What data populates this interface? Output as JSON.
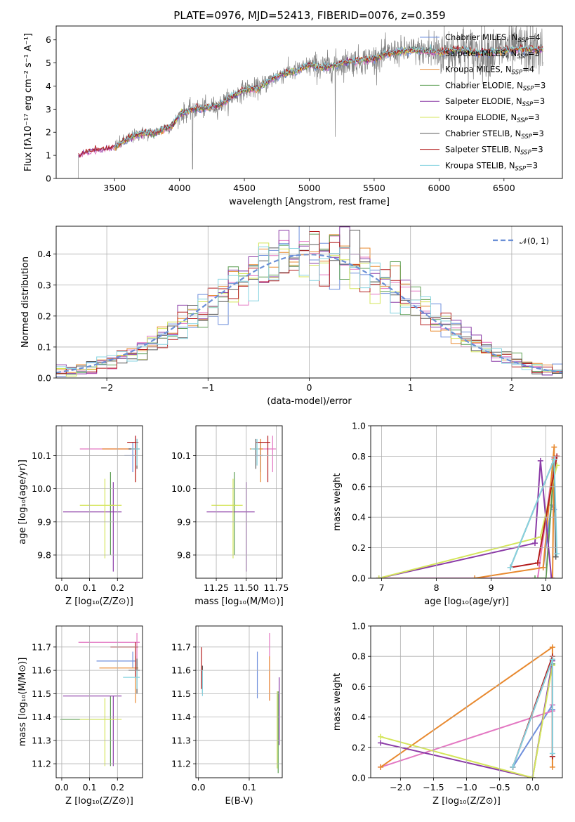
{
  "figure": {
    "title": "PLATE=0976, MJD=52413, FIBERID=0076, z=0.359"
  },
  "model_colors": {
    "Chabrier MILES": "#6f8fdc",
    "Salpeter MILES": "#e377c2",
    "Kroupa MILES": "#e8892f",
    "Chabrier ELODIE": "#5c9e52",
    "Salpeter ELODIE": "#8a3aa6",
    "Kroupa ELODIE": "#d4e55a",
    "Chabrier STELIB": "#5a5a5a",
    "Salpeter STELIB": "#b31b1b",
    "Kroupa STELIB": "#86d3e0"
  },
  "chart_data": [
    {
      "id": "spectrum",
      "type": "line",
      "title": "PLATE=0976, MJD=52413, FIBERID=0076, z=0.359",
      "xlabel": "wavelength [Angstrom, rest frame]",
      "ylabel": "Flux [fλ10⁻¹⁷ erg cm⁻² s⁻¹ A⁻¹]",
      "xlim": [
        3050,
        6950
      ],
      "ylim": [
        0,
        6.6
      ],
      "xticks": [
        "3500",
        "4000",
        "4500",
        "5000",
        "5500",
        "6000",
        "6500"
      ],
      "yticks": [
        "0",
        "1",
        "2",
        "3",
        "4",
        "5",
        "6"
      ],
      "grid": false,
      "legend_position": "top-right",
      "legend": [
        {
          "label": "Chabrier MILES, N",
          "sub": "SSP",
          "tail": "=4",
          "color": "#6f8fdc"
        },
        {
          "label": "Salpeter MILES, N",
          "sub": "SSP",
          "tail": "=3",
          "color": "#e377c2"
        },
        {
          "label": "Kroupa MILES, N",
          "sub": "SSP",
          "tail": "=4",
          "color": "#e8892f"
        },
        {
          "label": "Chabrier ELODIE, N",
          "sub": "SSP",
          "tail": "=3",
          "color": "#5c9e52"
        },
        {
          "label": "Salpeter ELODIE, N",
          "sub": "SSP",
          "tail": "=3",
          "color": "#8a3aa6"
        },
        {
          "label": "Kroupa ELODIE, N",
          "sub": "SSP",
          "tail": "=3",
          "color": "#d4e55a"
        },
        {
          "label": "Chabrier STELIB, N",
          "sub": "SSP",
          "tail": "=3",
          "color": "#5a5a5a"
        },
        {
          "label": "Salpeter STELIB, N",
          "sub": "SSP",
          "tail": "=3",
          "color": "#b31b1b"
        },
        {
          "label": "Kroupa STELIB, N",
          "sub": "SSP",
          "tail": "=3",
          "color": "#86d3e0"
        }
      ],
      "continuum": {
        "wavelength": [
          3220,
          3300,
          3400,
          3500,
          3600,
          3700,
          3800,
          3900,
          3950,
          4000,
          4100,
          4200,
          4300,
          4400,
          4500,
          4600,
          4700,
          4800,
          4900,
          5000,
          5100,
          5200,
          5300,
          5400,
          5500,
          5600,
          5700,
          5800,
          5900,
          6000,
          6100,
          6200,
          6300,
          6400,
          6500,
          6600,
          6700,
          6800
        ],
        "flux": [
          1.0,
          1.2,
          1.25,
          1.35,
          1.7,
          1.95,
          1.95,
          2.2,
          2.3,
          2.75,
          3.0,
          3.05,
          3.15,
          3.5,
          3.85,
          3.9,
          4.25,
          4.55,
          4.65,
          4.9,
          4.8,
          4.9,
          5.05,
          5.1,
          5.2,
          5.4,
          5.5,
          5.55,
          5.5,
          5.45,
          5.55,
          5.55,
          5.4,
          5.45,
          5.55,
          5.6,
          5.6,
          5.55
        ]
      },
      "data_noise_sigma": [
        0.05,
        0.25,
        0.35,
        0.5,
        0.9
      ],
      "data_noise_breaks": [
        3500,
        4000,
        5000,
        5900
      ],
      "data_color": "#808080"
    },
    {
      "id": "residuals",
      "type": "line",
      "xlabel": "(data-model)/error",
      "ylabel": "Normed distribution",
      "xlim": [
        -2.5,
        2.5
      ],
      "ylim": [
        0,
        0.49
      ],
      "xticks": [
        "−2",
        "−1",
        "0",
        "1",
        "2"
      ],
      "yticks": [
        "0.0",
        "0.1",
        "0.2",
        "0.3",
        "0.4"
      ],
      "grid": true,
      "legend_position": "top-right",
      "legend": [
        {
          "label": "𝒩(0, 1)",
          "color": "#6a8fd6"
        }
      ],
      "gaussian": {
        "mu": 0,
        "sigma": 1
      },
      "histogram_bins": 50,
      "histogram_range": [
        -2.5,
        2.5
      ]
    },
    {
      "id": "age-vs-Z",
      "type": "scatter",
      "xlabel": "Z [log₁₀(Z/Z⊙)]",
      "ylabel": "age  [log₁₀(age/yr)]",
      "xlim": [
        -0.02,
        0.29
      ],
      "ylim": [
        9.73,
        10.19
      ],
      "xticks": [
        "0.0",
        "0.1",
        "0.2"
      ],
      "yticks": [
        "9.8",
        "9.9",
        "10.0",
        "10.1"
      ],
      "grid": true,
      "points": [
        {
          "model": "Chabrier MILES",
          "x": 0.255,
          "xerr": [
            0.03,
            0.01
          ],
          "y": 10.1,
          "yerr": [
            0.05,
            0.04
          ]
        },
        {
          "model": "Salpeter MILES",
          "x": 0.265,
          "xerr": [
            0.2,
            0.01
          ],
          "y": 10.12,
          "yerr": [
            0.07,
            0.04
          ]
        },
        {
          "model": "Kroupa MILES",
          "x": 0.265,
          "xerr": [
            0.12,
            0.01
          ],
          "y": 10.12,
          "yerr": [
            0.1,
            0.03
          ]
        },
        {
          "model": "Chabrier ELODIE",
          "x": 0.175,
          "xerr": [
            0.0,
            0.01
          ],
          "y": 9.95,
          "yerr": [
            0.15,
            0.1
          ]
        },
        {
          "model": "Salpeter ELODIE",
          "x": 0.185,
          "xerr": [
            0.18,
            0.03
          ],
          "y": 9.93,
          "yerr": [
            0.18,
            0.09
          ]
        },
        {
          "model": "Kroupa ELODIE",
          "x": 0.155,
          "xerr": [
            0.09,
            0.06
          ],
          "y": 9.95,
          "yerr": [
            0.16,
            0.08
          ]
        },
        {
          "model": "Chabrier STELIB",
          "x": 0.27,
          "xerr": [
            0.03,
            0.01
          ],
          "y": 10.12,
          "yerr": [
            0.06,
            0.03
          ]
        },
        {
          "model": "Salpeter STELIB",
          "x": 0.265,
          "xerr": [
            0.03,
            0.01
          ],
          "y": 10.14,
          "yerr": [
            0.12,
            0.02
          ]
        },
        {
          "model": "Kroupa STELIB",
          "x": 0.27,
          "xerr": [
            0.02,
            0.01
          ],
          "y": 10.12,
          "yerr": [
            0.05,
            0.03
          ]
        }
      ]
    },
    {
      "id": "age-vs-mass",
      "type": "scatter",
      "xlabel": "mass [log₁₀(M/M⊙)]",
      "ylabel": "",
      "xlim": [
        11.08,
        11.8
      ],
      "ylim": [
        9.73,
        10.19
      ],
      "xticks": [
        "11.25",
        "11.50",
        "11.75"
      ],
      "yticks": [
        "9.8",
        "9.9",
        "10.0",
        "10.1"
      ],
      "grid": true,
      "points": [
        {
          "model": "Chabrier MILES",
          "x": 11.62,
          "xerr": [
            0.05,
            0.02
          ],
          "y": 10.1,
          "yerr": [
            0.05,
            0.04
          ]
        },
        {
          "model": "Salpeter MILES",
          "x": 11.72,
          "xerr": [
            0.12,
            0.03
          ],
          "y": 10.12,
          "yerr": [
            0.07,
            0.04
          ]
        },
        {
          "model": "Kroupa MILES",
          "x": 11.62,
          "xerr": [
            0.09,
            0.02
          ],
          "y": 10.12,
          "yerr": [
            0.1,
            0.03
          ]
        },
        {
          "model": "Chabrier ELODIE",
          "x": 11.4,
          "xerr": [
            0.01,
            0.01
          ],
          "y": 9.95,
          "yerr": [
            0.15,
            0.1
          ]
        },
        {
          "model": "Salpeter ELODIE",
          "x": 11.5,
          "xerr": [
            0.33,
            0.07
          ],
          "y": 9.93,
          "yerr": [
            0.18,
            0.09
          ]
        },
        {
          "model": "Kroupa ELODIE",
          "x": 11.39,
          "xerr": [
            0.18,
            0.08
          ],
          "y": 9.95,
          "yerr": [
            0.16,
            0.08
          ]
        },
        {
          "model": "Chabrier STELIB",
          "x": 11.58,
          "xerr": [
            0.02,
            0.01
          ],
          "y": 10.12,
          "yerr": [
            0.06,
            0.03
          ]
        },
        {
          "model": "Salpeter STELIB",
          "x": 11.68,
          "xerr": [
            0.1,
            0.02
          ],
          "y": 10.14,
          "yerr": [
            0.12,
            0.02
          ]
        },
        {
          "model": "Kroupa STELIB",
          "x": 11.59,
          "xerr": [
            0.05,
            0.02
          ],
          "y": 10.12,
          "yerr": [
            0.05,
            0.03
          ]
        }
      ]
    },
    {
      "id": "weight-vs-age",
      "type": "line",
      "xlabel": "age  [log₁₀(age/yr)]",
      "ylabel": "mass weight",
      "xlim": [
        6.8,
        10.3
      ],
      "ylim": [
        0,
        1.0
      ],
      "xticks": [
        "7",
        "8",
        "9",
        "10"
      ],
      "yticks": [
        "0.0",
        "0.2",
        "0.4",
        "0.6",
        "0.8",
        "1.0"
      ],
      "grid": true,
      "series": [
        {
          "model": "Chabrier MILES",
          "x": [
            9.95,
            10.1,
            10.15
          ],
          "y": [
            0.07,
            0.48,
            0.45
          ]
        },
        {
          "model": "Salpeter MILES",
          "x": [
            6.95,
            9.85,
            10.15
          ],
          "y": [
            0.0,
            0.0,
            0.79
          ]
        },
        {
          "model": "Kroupa MILES",
          "x": [
            8.7,
            9.95,
            10.15,
            10.12
          ],
          "y": [
            0.0,
            0.07,
            0.86,
            0.0
          ]
        },
        {
          "model": "Chabrier ELODIE",
          "x": [
            9.8,
            10.0,
            10.15
          ],
          "y": [
            0.0,
            0.0,
            0.75
          ]
        },
        {
          "model": "Salpeter ELODIE",
          "x": [
            6.95,
            9.8,
            9.9,
            10.1
          ],
          "y": [
            0.0,
            0.23,
            0.77,
            0.0
          ]
        },
        {
          "model": "Kroupa ELODIE",
          "x": [
            6.95,
            9.9,
            10.2
          ],
          "y": [
            0.0,
            0.27,
            0.74
          ]
        },
        {
          "model": "Chabrier STELIB",
          "x": [
            9.35,
            10.15,
            10.18
          ],
          "y": [
            0.07,
            0.78,
            0.14
          ]
        },
        {
          "model": "Salpeter STELIB",
          "x": [
            9.35,
            9.85,
            10.2
          ],
          "y": [
            0.07,
            0.1,
            0.8
          ]
        },
        {
          "model": "Kroupa STELIB",
          "x": [
            9.35,
            10.15,
            10.2
          ],
          "y": [
            0.07,
            0.78,
            0.16
          ]
        }
      ]
    },
    {
      "id": "mass-vs-Z",
      "type": "scatter",
      "xlabel": "Z [log₁₀(Z/Z⊙)]",
      "ylabel": "mass [log₁₀(M/M⊙)]",
      "xlim": [
        -0.02,
        0.29
      ],
      "ylim": [
        11.14,
        11.79
      ],
      "xticks": [
        "0.0",
        "0.1",
        "0.2"
      ],
      "yticks": [
        "11.2",
        "11.3",
        "11.4",
        "11.5",
        "11.6",
        "11.7"
      ],
      "grid": true,
      "points": [
        {
          "model": "Chabrier MILES",
          "x": 0.255,
          "xerr": [
            0.13,
            0.01
          ],
          "y": 11.64,
          "yerr": [
            0.03,
            0.04
          ]
        },
        {
          "model": "Salpeter MILES",
          "x": 0.27,
          "xerr": [
            0.21,
            0.01
          ],
          "y": 11.72,
          "yerr": [
            0.12,
            0.04
          ]
        },
        {
          "model": "Kroupa MILES",
          "x": 0.265,
          "xerr": [
            0.13,
            0.01
          ],
          "y": 11.61,
          "yerr": [
            0.15,
            0.05
          ]
        },
        {
          "model": "Chabrier ELODIE",
          "x": 0.175,
          "xerr": [
            0.18,
            0.0
          ],
          "y": 11.39,
          "yerr": [
            0.2,
            0.1
          ]
        },
        {
          "model": "Salpeter ELODIE",
          "x": 0.185,
          "xerr": [
            0.18,
            0.03
          ],
          "y": 11.49,
          "yerr": [
            0.3,
            0.0
          ]
        },
        {
          "model": "Kroupa ELODIE",
          "x": 0.155,
          "xerr": [
            0.09,
            0.06
          ],
          "y": 11.39,
          "yerr": [
            0.2,
            0.09
          ]
        },
        {
          "model": "Chabrier STELIB",
          "x": 0.27,
          "xerr": [
            0.03,
            0.01
          ],
          "y": 11.6,
          "yerr": [
            0.1,
            0.05
          ]
        },
        {
          "model": "Salpeter STELIB",
          "x": 0.265,
          "xerr": [
            0.09,
            0.01
          ],
          "y": 11.7,
          "yerr": [
            0.13,
            0.02
          ]
        },
        {
          "model": "Kroupa STELIB",
          "x": 0.27,
          "xerr": [
            0.05,
            0.01
          ],
          "y": 11.57,
          "yerr": [
            0.05,
            0.03
          ]
        }
      ]
    },
    {
      "id": "mass-vs-ebv",
      "type": "scatter",
      "xlabel": "E(B-V)",
      "ylabel": "",
      "xlim": [
        -0.005,
        0.165
      ],
      "ylim": [
        11.14,
        11.79
      ],
      "xticks": [
        "0.0",
        "0.1"
      ],
      "yticks": [
        "11.2",
        "11.3",
        "11.4",
        "11.5",
        "11.6",
        "11.7"
      ],
      "grid": true,
      "points": [
        {
          "model": "Chabrier MILES",
          "x": 0.116,
          "y": 11.58,
          "yerr": [
            0.1,
            0.1
          ]
        },
        {
          "model": "Salpeter MILES",
          "x": 0.14,
          "y": 11.6,
          "yerr": [
            0.13,
            0.16
          ]
        },
        {
          "model": "Kroupa MILES",
          "x": 0.14,
          "y": 11.55,
          "yerr": [
            0.08,
            0.11
          ]
        },
        {
          "model": "Chabrier ELODIE",
          "x": 0.157,
          "y": 11.32,
          "yerr": [
            0.16,
            0.19
          ]
        },
        {
          "model": "Salpeter ELODIE",
          "x": 0.159,
          "y": 11.4,
          "yerr": [
            0.12,
            0.17
          ]
        },
        {
          "model": "Kroupa ELODIE",
          "x": 0.155,
          "y": 11.38,
          "yerr": [
            0.2,
            0.13
          ]
        },
        {
          "model": "Chabrier STELIB",
          "x": 0.008,
          "y": 11.58,
          "yerr": [
            0.08,
            0.04
          ]
        },
        {
          "model": "Salpeter STELIB",
          "x": 0.006,
          "y": 11.62,
          "yerr": [
            0.1,
            0.08
          ]
        },
        {
          "model": "Kroupa STELIB",
          "x": 0.008,
          "y": 11.55,
          "yerr": [
            0.06,
            0.05
          ]
        }
      ]
    },
    {
      "id": "weight-vs-Z",
      "type": "line",
      "xlabel": "Z [log₁₀(Z/Z⊙)]",
      "ylabel": "mass weight",
      "xlim": [
        -2.45,
        0.45
      ],
      "ylim": [
        0,
        1.0
      ],
      "xticks": [
        "−2.0",
        "−1.5",
        "−1.0",
        "−0.5",
        "0.0"
      ],
      "yticks": [
        "0.0",
        "0.2",
        "0.4",
        "0.6",
        "0.8",
        "1.0"
      ],
      "grid": true,
      "series": [
        {
          "model": "Chabrier MILES",
          "x": [
            -0.3,
            0.3,
            0.3
          ],
          "y": [
            0.07,
            0.48,
            0.45
          ]
        },
        {
          "model": "Salpeter MILES",
          "x": [
            -2.3,
            0.3,
            0.3
          ],
          "y": [
            0.07,
            0.44,
            0.48
          ]
        },
        {
          "model": "Kroupa MILES",
          "x": [
            -2.3,
            0.3,
            0.3
          ],
          "y": [
            0.07,
            0.86,
            0.07
          ]
        },
        {
          "model": "Chabrier ELODIE",
          "x": [
            0.0,
            0.3
          ],
          "y": [
            0.0,
            0.75
          ]
        },
        {
          "model": "Salpeter ELODIE",
          "x": [
            -2.3,
            0.0,
            0.3
          ],
          "y": [
            0.23,
            0.0,
            0.77
          ]
        },
        {
          "model": "Kroupa ELODIE",
          "x": [
            -2.3,
            0.0,
            0.3
          ],
          "y": [
            0.27,
            0.0,
            0.74
          ]
        },
        {
          "model": "Chabrier STELIB",
          "x": [
            -0.3,
            0.3,
            0.3
          ],
          "y": [
            0.07,
            0.78,
            0.14
          ]
        },
        {
          "model": "Salpeter STELIB",
          "x": [
            -0.3,
            0.3,
            0.3
          ],
          "y": [
            0.07,
            0.8,
            0.14
          ]
        },
        {
          "model": "Kroupa STELIB",
          "x": [
            -0.3,
            0.3,
            0.3
          ],
          "y": [
            0.07,
            0.78,
            0.16
          ]
        }
      ]
    }
  ]
}
